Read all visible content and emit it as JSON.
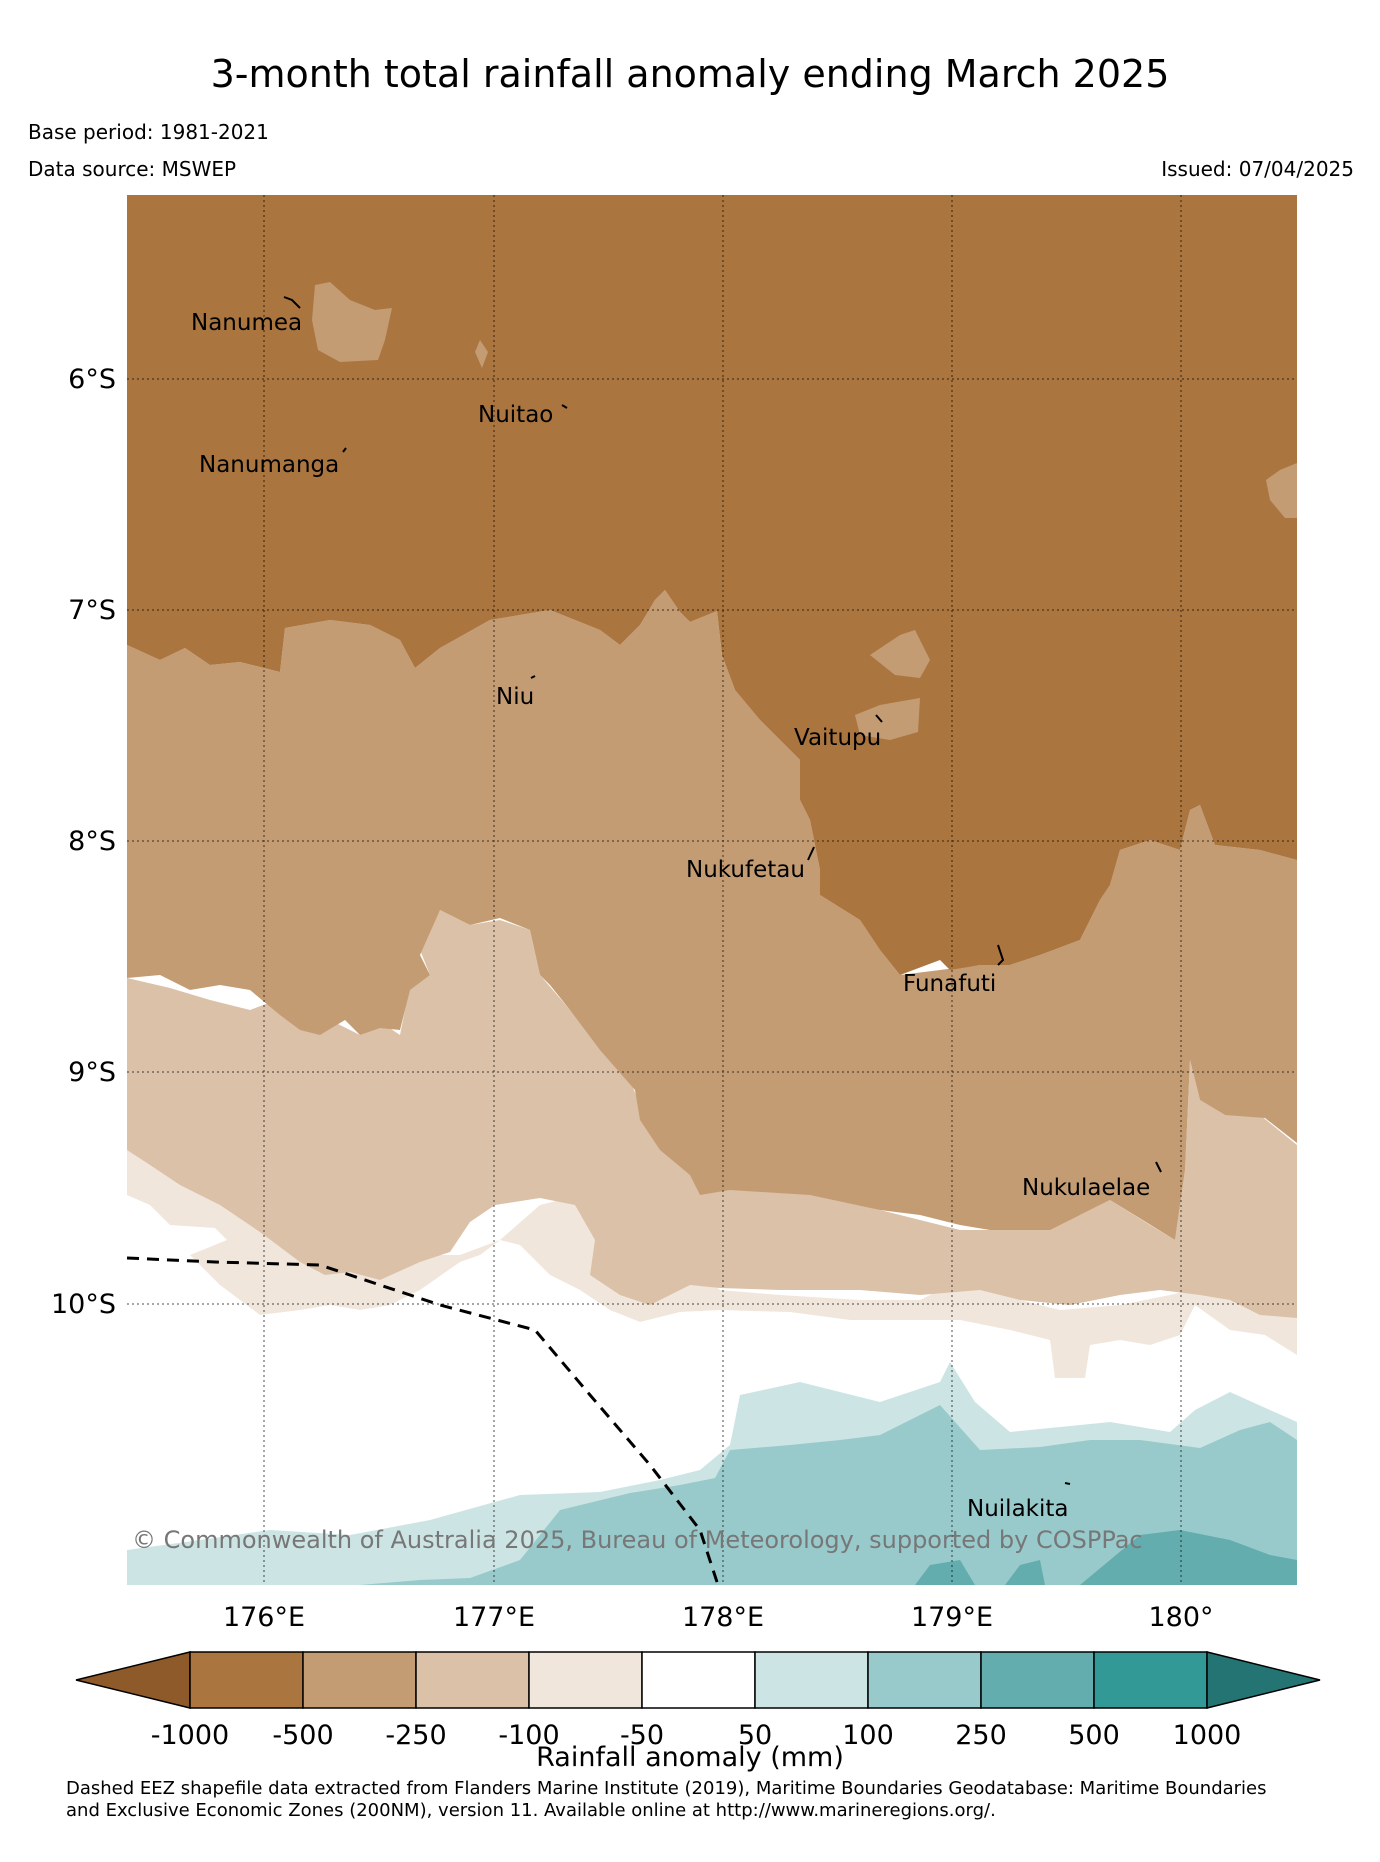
{
  "title": "3-month total rainfall anomaly ending March 2025",
  "base_period": "Base period: 1981-2021",
  "data_source": "Data source: MSWEP",
  "issued": "Issued: 07/04/2025",
  "copyright": "© Commonwealth of Australia 2025, Bureau of Meteorology, supported by COSPPac",
  "lat_labels": [
    "6°S",
    "7°S",
    "8°S",
    "9°S",
    "10°S"
  ],
  "lon_labels": [
    "176°E",
    "177°E",
    "178°E",
    "179°E",
    "180°"
  ],
  "places": [
    "Nanumea",
    "Nuitao",
    "Nanumanga",
    "Niu",
    "Vaitupu",
    "Nukufetau",
    "Funafuti",
    "Nukulaelae",
    "Nuilakita"
  ],
  "colorbar": {
    "title": "Rainfall anomaly (mm)",
    "ticks": [
      "-1000",
      "-500",
      "-250",
      "-100",
      "-50",
      "50",
      "100",
      "250",
      "500",
      "1000"
    ],
    "colors": [
      "#8e5a2a",
      "#ab753f",
      "#c49c73",
      "#dbc1a8",
      "#f1e6dc",
      "#ffffff",
      "#cce5e4",
      "#99cacb",
      "#63adaf",
      "#339996",
      "#257474"
    ]
  },
  "footer_line1": "Dashed EEZ shapefile data extracted from Flanders Marine Institute (2019), Maritime Boundaries Geodatabase: Maritime Boundaries",
  "footer_line2": "and Exclusive Economic Zones (200NM), version 11. Available online at http://www.marineregions.org/."
}
